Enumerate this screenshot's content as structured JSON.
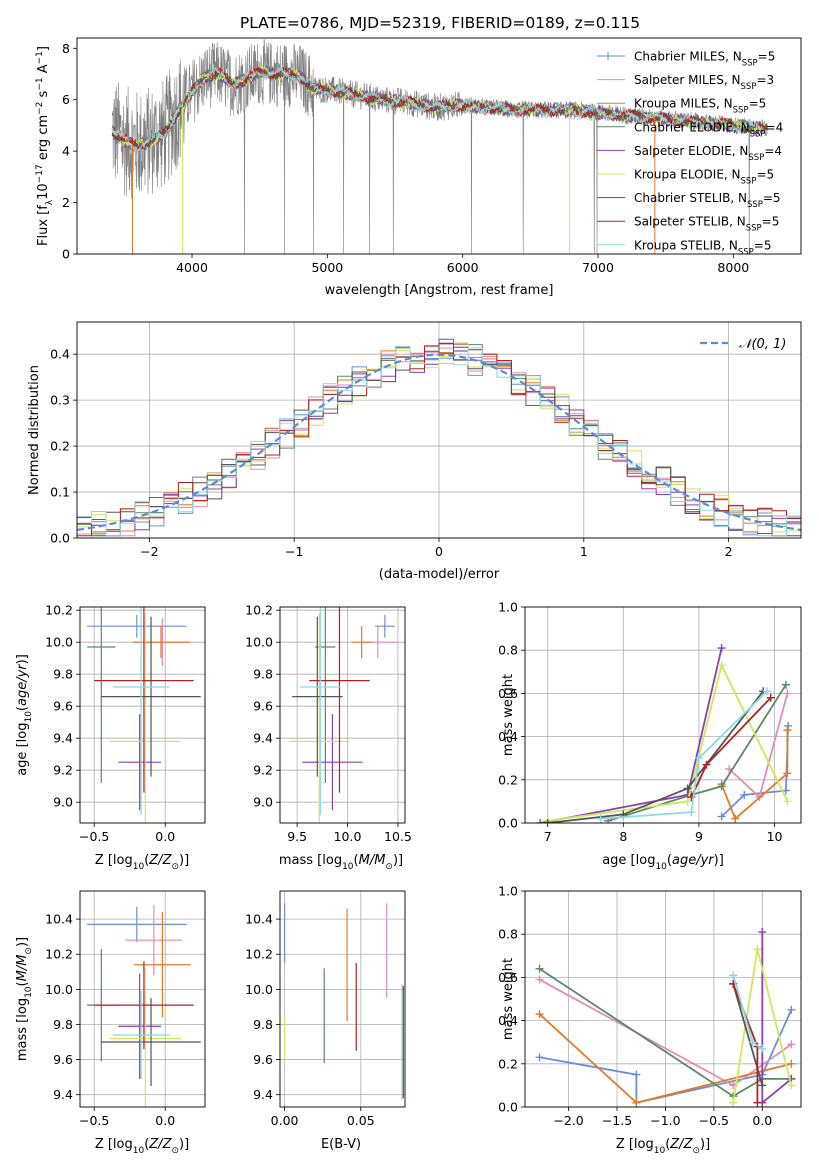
{
  "title": "PLATE=0786, MJD=52319, FIBERID=0189, z=0.115",
  "colors": [
    "#6a8fd8",
    "#e88ab8",
    "#e07b2a",
    "#5b8a66",
    "#8e3fb0",
    "#cfe85a",
    "#555555",
    "#b22222",
    "#8fd8e0"
  ],
  "chart_data": [
    {
      "type": "line",
      "id": "spectrum",
      "xlabel": "wavelength [Angstrom, rest frame]",
      "ylabel": "Flux [f",
      "xlim": [
        3150,
        8500
      ],
      "ylim": [
        0,
        8.4
      ],
      "xticks": [
        4000,
        5000,
        6000,
        7000,
        8000
      ],
      "yticks": [
        0,
        2,
        4,
        6,
        8
      ],
      "grid": false,
      "legend_position": "top-right",
      "series": [
        {
          "name": "Chabrier MILES, N",
          "nssp": "5",
          "color": "#6a8fd8"
        },
        {
          "name": "Salpeter MILES, N",
          "nssp": "3",
          "color": "#e88ab8"
        },
        {
          "name": "Kroupa MILES, N",
          "nssp": "5",
          "color": "#e07b2a"
        },
        {
          "name": "Chabrier ELODIE, N",
          "nssp": "4",
          "color": "#5b8a66"
        },
        {
          "name": "Salpeter ELODIE, N",
          "nssp": "4",
          "color": "#8e3fb0"
        },
        {
          "name": "Kroupa ELODIE, N",
          "nssp": "5",
          "color": "#cfe85a"
        },
        {
          "name": "Chabrier STELIB, N",
          "nssp": "5",
          "color": "#555555"
        },
        {
          "name": "Salpeter STELIB, N",
          "nssp": "5",
          "color": "#b22222"
        },
        {
          "name": "Kroupa STELIB, N",
          "nssp": "5",
          "color": "#8fd8e0"
        }
      ],
      "observed_color": "#808080",
      "model_x": [
        3410,
        3500,
        3600,
        3700,
        3800,
        3900,
        4000,
        4100,
        4200,
        4300,
        4400,
        4500,
        4600,
        4700,
        4800,
        4900,
        5000,
        5200,
        5400,
        5600,
        5800,
        6000,
        6200,
        6400,
        6600,
        6800,
        7000,
        7200,
        7400,
        7600,
        7800,
        8000,
        8200,
        8250
      ],
      "model_y": [
        4.8,
        4.4,
        4.2,
        4.4,
        4.7,
        5.6,
        6.3,
        6.9,
        7.0,
        6.6,
        6.8,
        7.1,
        7.0,
        7.0,
        6.9,
        6.4,
        6.4,
        6.2,
        6.0,
        5.9,
        5.7,
        5.8,
        5.7,
        5.6,
        5.6,
        5.6,
        5.5,
        5.4,
        5.3,
        5.2,
        5.1,
        5.0,
        4.9,
        4.9
      ]
    },
    {
      "type": "bar",
      "id": "residuals",
      "xlabel": "(data-model)/error",
      "ylabel": "Normed distribution",
      "xlim": [
        -2.5,
        2.5
      ],
      "ylim": [
        0,
        0.47
      ],
      "xticks": [
        -2,
        -1,
        0,
        1,
        2
      ],
      "yticks": [
        0.0,
        0.1,
        0.2,
        0.3,
        0.4
      ],
      "grid": true,
      "legend_position": "top-right",
      "reference_label": "𝒩(0, 1)",
      "reference_color": "#5b8ad8",
      "bin_width": 0.1
    },
    {
      "type": "scatter",
      "id": "age-vs-Z",
      "xlabel": "Z [log",
      "ylabel": "age  [log",
      "xlim": [
        -0.6,
        0.28
      ],
      "ylim": [
        8.87,
        10.22
      ],
      "xticks": [
        -0.5,
        0.0
      ],
      "yticks": [
        9.0,
        9.2,
        9.4,
        9.6,
        9.8,
        10.0,
        10.2
      ],
      "grid": true,
      "points": [
        {
          "x": -0.2,
          "y": 10.1,
          "xerr": 0.35,
          "yerr": 0.07,
          "color": "#6a8fd8"
        },
        {
          "x": -0.02,
          "y": 10.0,
          "xerr": 0.2,
          "yerr": 0.15,
          "color": "#e88ab8"
        },
        {
          "x": -0.03,
          "y": 10.0,
          "xerr": 0.2,
          "yerr": 0.1,
          "color": "#e07b2a"
        },
        {
          "x": -0.45,
          "y": 9.97,
          "xerr": 0.1,
          "yerr": 0.85,
          "color": "#5b8a66"
        },
        {
          "x": -0.18,
          "y": 9.25,
          "xerr": 0.15,
          "yerr": 0.3,
          "color": "#8e3fb0"
        },
        {
          "x": -0.14,
          "y": 9.38,
          "xerr": 0.25,
          "yerr": 0.8,
          "color": "#cfe85a"
        },
        {
          "x": -0.1,
          "y": 9.66,
          "xerr": 0.35,
          "yerr": 0.5,
          "color": "#555555"
        },
        {
          "x": -0.15,
          "y": 9.76,
          "xerr": 0.35,
          "yerr": 0.7,
          "color": "#b22222"
        },
        {
          "x": -0.17,
          "y": 9.72,
          "xerr": 0.2,
          "yerr": 0.8,
          "color": "#8fd8e0"
        }
      ]
    },
    {
      "type": "scatter",
      "id": "age-vs-mass",
      "xlabel": "mass [log",
      "ylabel": "",
      "xlim": [
        9.33,
        10.57
      ],
      "ylim": [
        8.87,
        10.22
      ],
      "xticks": [
        9.5,
        10.0,
        10.5
      ],
      "yticks": [
        9.0,
        9.2,
        9.4,
        9.6,
        9.8,
        10.0,
        10.2
      ],
      "grid": true,
      "points": [
        {
          "x": 10.37,
          "y": 10.1,
          "xerr": 0.1,
          "yerr": 0.07,
          "color": "#6a8fd8"
        },
        {
          "x": 10.3,
          "y": 10.0,
          "xerr": 0.2,
          "yerr": 0.1,
          "color": "#e88ab8"
        },
        {
          "x": 10.14,
          "y": 10.0,
          "xerr": 0.1,
          "yerr": 0.1,
          "color": "#e07b2a"
        },
        {
          "x": 9.78,
          "y": 9.97,
          "xerr": 0.1,
          "yerr": 0.85,
          "color": "#5b8a66"
        },
        {
          "x": 9.85,
          "y": 9.25,
          "xerr": 0.3,
          "yerr": 0.3,
          "color": "#8e3fb0"
        },
        {
          "x": 9.72,
          "y": 9.38,
          "xerr": 0.3,
          "yerr": 0.8,
          "color": "#cfe85a"
        },
        {
          "x": 9.7,
          "y": 9.66,
          "xerr": 0.25,
          "yerr": 0.5,
          "color": "#555555"
        },
        {
          "x": 9.92,
          "y": 9.76,
          "xerr": 0.3,
          "yerr": 0.7,
          "color": "#b22222"
        },
        {
          "x": 9.73,
          "y": 9.72,
          "xerr": 0.2,
          "yerr": 0.8,
          "color": "#8fd8e0"
        }
      ]
    },
    {
      "type": "line",
      "id": "weight-vs-age",
      "xlabel": "age  [log",
      "ylabel": "mass weight",
      "xlim": [
        6.7,
        10.35
      ],
      "ylim": [
        0,
        1.0
      ],
      "xticks": [
        7,
        8,
        9,
        10
      ],
      "yticks": [
        0.0,
        0.2,
        0.4,
        0.6,
        0.8,
        1.0
      ],
      "grid": true,
      "series": [
        {
          "color": "#6a8fd8",
          "x": [
            9.3,
            9.6,
            10.15,
            10.18
          ],
          "y": [
            0.03,
            0.13,
            0.15,
            0.45
          ]
        },
        {
          "color": "#e88ab8",
          "x": [
            9.4,
            9.8,
            10.17
          ],
          "y": [
            0.25,
            0.12,
            0.6
          ]
        },
        {
          "color": "#e07b2a",
          "x": [
            9.3,
            9.48,
            10.17,
            10.17
          ],
          "y": [
            0.18,
            0.02,
            0.23,
            0.43
          ]
        },
        {
          "color": "#5b8a66",
          "x": [
            7.8,
            8.9,
            9.3,
            10.15
          ],
          "y": [
            0.01,
            0.13,
            0.17,
            0.64
          ]
        },
        {
          "color": "#8e3fb0",
          "x": [
            6.9,
            8.85,
            9.3
          ],
          "y": [
            0.0,
            0.13,
            0.81
          ]
        },
        {
          "color": "#cfe85a",
          "x": [
            7.0,
            8.85,
            9.3,
            10.17
          ],
          "y": [
            0.01,
            0.1,
            0.73,
            0.1
          ]
        },
        {
          "color": "#555555",
          "x": [
            7.0,
            8.0,
            8.85,
            9.85
          ],
          "y": [
            0.0,
            0.04,
            0.16,
            0.61
          ]
        },
        {
          "color": "#b22222",
          "x": [
            8.9,
            9.1,
            9.95
          ],
          "y": [
            0.12,
            0.27,
            0.58
          ]
        },
        {
          "color": "#8fd8e0",
          "x": [
            7.7,
            8.9,
            9.0,
            9.9
          ],
          "y": [
            0.02,
            0.05,
            0.3,
            0.61
          ]
        }
      ]
    },
    {
      "type": "scatter",
      "id": "mass-vs-Z",
      "xlabel": "Z [log",
      "ylabel": "mass [log",
      "xlim": [
        -0.6,
        0.28
      ],
      "ylim": [
        9.33,
        10.56
      ],
      "xticks": [
        -0.5,
        0.0
      ],
      "yticks": [
        9.4,
        9.6,
        9.8,
        10.0,
        10.2,
        10.4
      ],
      "grid": true,
      "points": [
        {
          "x": -0.2,
          "y": 10.37,
          "xerr": 0.35,
          "yerr": 0.1,
          "color": "#6a8fd8"
        },
        {
          "x": -0.08,
          "y": 10.28,
          "xerr": 0.2,
          "yerr": 0.2,
          "color": "#e88ab8"
        },
        {
          "x": -0.02,
          "y": 10.14,
          "xerr": 0.2,
          "yerr": 0.3,
          "color": "#e07b2a"
        },
        {
          "x": -0.45,
          "y": 9.91,
          "xerr": 0.1,
          "yerr": 0.32,
          "color": "#5b8a66"
        },
        {
          "x": -0.18,
          "y": 9.79,
          "xerr": 0.15,
          "yerr": 0.3,
          "color": "#8e3fb0"
        },
        {
          "x": -0.14,
          "y": 9.72,
          "xerr": 0.25,
          "yerr": 0.4,
          "color": "#cfe85a"
        },
        {
          "x": -0.1,
          "y": 9.7,
          "xerr": 0.35,
          "yerr": 0.25,
          "color": "#555555"
        },
        {
          "x": -0.15,
          "y": 9.91,
          "xerr": 0.35,
          "yerr": 0.25,
          "color": "#b22222"
        },
        {
          "x": -0.17,
          "y": 9.74,
          "xerr": 0.2,
          "yerr": 0.25,
          "color": "#8fd8e0"
        }
      ]
    },
    {
      "type": "scatter",
      "id": "mass-vs-EBV",
      "xlabel": "E(B-V)",
      "ylabel": "",
      "xlim": [
        -0.003,
        0.079
      ],
      "ylim": [
        9.33,
        10.56
      ],
      "xticks": [
        0.0,
        0.05
      ],
      "yticks": [
        9.4,
        9.6,
        9.8,
        10.0,
        10.2,
        10.4
      ],
      "grid": true,
      "points": [
        {
          "x": 0.0,
          "y": 10.32,
          "xerr": 0,
          "yerr": 0.17,
          "color": "#6a8fd8"
        },
        {
          "x": 0.067,
          "y": 10.22,
          "xerr": 0,
          "yerr": 0.27,
          "color": "#e88ab8"
        },
        {
          "x": 0.041,
          "y": 10.14,
          "xerr": 0,
          "yerr": 0.32,
          "color": "#e07b2a"
        },
        {
          "x": 0.026,
          "y": 9.85,
          "xerr": 0,
          "yerr": 0.27,
          "color": "#5b8a66"
        },
        {
          "x": 0.0,
          "y": 9.72,
          "xerr": 0,
          "yerr": 0.12,
          "color": "#cfe85a"
        },
        {
          "x": 0.047,
          "y": 9.9,
          "xerr": 0,
          "yerr": 0.25,
          "color": "#b22222"
        },
        {
          "x": 0.077,
          "y": 9.7,
          "xerr": 0,
          "yerr": 0.33,
          "color": "#8fd8e0"
        },
        {
          "x": 0.0779,
          "y": 9.7,
          "xerr": 0,
          "yerr": 0.32,
          "color": "#555555"
        }
      ]
    },
    {
      "type": "line",
      "id": "weight-vs-Z",
      "xlabel": "Z [log",
      "ylabel": "mass weight",
      "xlim": [
        -2.45,
        0.4
      ],
      "ylim": [
        0,
        1.0
      ],
      "xticks": [
        -2.0,
        -1.5,
        -1.0,
        -0.5,
        0.0
      ],
      "yticks": [
        0.0,
        0.2,
        0.4,
        0.6,
        0.8,
        1.0
      ],
      "grid": true,
      "series": [
        {
          "color": "#6a8fd8",
          "x": [
            -2.3,
            -1.3,
            -1.3,
            0.0,
            0.3
          ],
          "y": [
            0.23,
            0.15,
            0.02,
            0.15,
            0.45
          ]
        },
        {
          "color": "#e88ab8",
          "x": [
            -2.3,
            -0.3,
            0.3
          ],
          "y": [
            0.59,
            0.1,
            0.29
          ]
        },
        {
          "color": "#e07b2a",
          "x": [
            -2.3,
            -1.3,
            0.3
          ],
          "y": [
            0.43,
            0.02,
            0.2
          ]
        },
        {
          "color": "#5b8a66",
          "x": [
            -2.3,
            -0.3,
            0.0,
            0.3
          ],
          "y": [
            0.64,
            0.05,
            0.13,
            0.13
          ]
        },
        {
          "color": "#8e3fb0",
          "x": [
            0.0,
            0.0,
            0.3
          ],
          "y": [
            0.81,
            0.02,
            0.13
          ]
        },
        {
          "color": "#cfe85a",
          "x": [
            -0.3,
            -0.05,
            0.3
          ],
          "y": [
            0.02,
            0.73,
            0.1
          ]
        },
        {
          "color": "#555555",
          "x": [
            -0.3,
            0.0
          ],
          "y": [
            0.57,
            0.1
          ]
        },
        {
          "color": "#b22222",
          "x": [
            -0.3,
            -0.05,
            -0.05
          ],
          "y": [
            0.57,
            0.28,
            0.02
          ]
        },
        {
          "color": "#8fd8e0",
          "x": [
            -0.3,
            -0.1,
            0.0
          ],
          "y": [
            0.61,
            0.3,
            0.27
          ]
        }
      ]
    }
  ]
}
